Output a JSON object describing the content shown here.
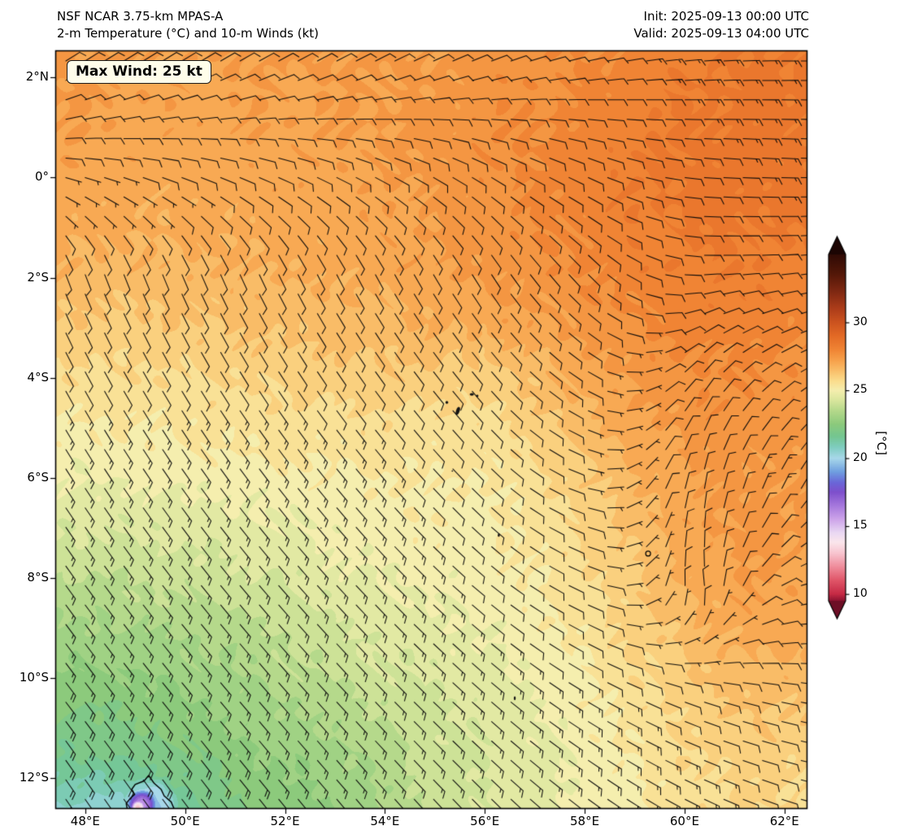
{
  "header": {
    "title_line1": "NSF NCAR 3.75-km MPAS-A",
    "title_line2": "2-m Temperature (°C) and 10-m Winds (kt)",
    "init_line": "Init: 2025-09-13 00:00 UTC",
    "valid_line": "Valid: 2025-09-13 04:00 UTC"
  },
  "annotation": {
    "max_wind_label": "Max Wind: 25 kt"
  },
  "chart_data": {
    "type": "heatmap",
    "title": "2-m Temperature (°C) and 10-m Winds (kt)",
    "model": "NSF NCAR 3.75-km MPAS-A",
    "max_wind_kt": 25,
    "axes": {
      "lon_range": [
        47.4,
        62.46
      ],
      "lat_range": [
        -12.61,
        2.54
      ],
      "x_ticks": [
        {
          "lon": 48,
          "label": "48°E"
        },
        {
          "lon": 50,
          "label": "50°E"
        },
        {
          "lon": 52,
          "label": "52°E"
        },
        {
          "lon": 54,
          "label": "54°E"
        },
        {
          "lon": 56,
          "label": "56°E"
        },
        {
          "lon": 58,
          "label": "58°E"
        },
        {
          "lon": 60,
          "label": "60°E"
        },
        {
          "lon": 62,
          "label": "62°E"
        }
      ],
      "y_ticks": [
        {
          "lat": 2,
          "label": "2°N"
        },
        {
          "lat": 0,
          "label": "0°"
        },
        {
          "lat": -2,
          "label": "2°S"
        },
        {
          "lat": -4,
          "label": "4°S"
        },
        {
          "lat": -6,
          "label": "6°S"
        },
        {
          "lat": -8,
          "label": "8°S"
        },
        {
          "lat": -10,
          "label": "10°S"
        },
        {
          "lat": -12,
          "label": "12°S"
        }
      ]
    },
    "colorbar": {
      "unit_label": "[°C]",
      "vmin": 9.5,
      "vmax": 35,
      "ticks": [
        {
          "value": 30,
          "label": "30"
        },
        {
          "value": 25,
          "label": "25"
        },
        {
          "value": 20,
          "label": "20"
        },
        {
          "value": 15,
          "label": "15"
        },
        {
          "value": 10,
          "label": "10"
        }
      ],
      "extend_over_color": "#1c0503",
      "extend_under_color": "#6d0f26",
      "stops": [
        {
          "v": 9.5,
          "c": "#8c1330"
        },
        {
          "v": 10,
          "c": "#c62a45"
        },
        {
          "v": 11,
          "c": "#e05568"
        },
        {
          "v": 12,
          "c": "#ef8c9b"
        },
        {
          "v": 13,
          "c": "#f8c4cf"
        },
        {
          "v": 13.8,
          "c": "#fbe6ec"
        },
        {
          "v": 14.5,
          "c": "#ead9f3"
        },
        {
          "v": 15.5,
          "c": "#cda4ea"
        },
        {
          "v": 16.5,
          "c": "#a678dd"
        },
        {
          "v": 17.5,
          "c": "#7e50cc"
        },
        {
          "v": 18.2,
          "c": "#6a66d8"
        },
        {
          "v": 19,
          "c": "#6f9fe0"
        },
        {
          "v": 20,
          "c": "#a8d8ea"
        },
        {
          "v": 20.8,
          "c": "#7fcdc0"
        },
        {
          "v": 21.6,
          "c": "#74c691"
        },
        {
          "v": 22.5,
          "c": "#8cca7c"
        },
        {
          "v": 23.5,
          "c": "#b5d98b"
        },
        {
          "v": 24.3,
          "c": "#dbe79e"
        },
        {
          "v": 25,
          "c": "#f5eeae"
        },
        {
          "v": 25.7,
          "c": "#fbdc8c"
        },
        {
          "v": 26.5,
          "c": "#f9bc67"
        },
        {
          "v": 27.2,
          "c": "#f7a14b"
        },
        {
          "v": 28,
          "c": "#f08434"
        },
        {
          "v": 29,
          "c": "#e36a26"
        },
        {
          "v": 30,
          "c": "#cc531f"
        },
        {
          "v": 31,
          "c": "#ad3d1a"
        },
        {
          "v": 32.3,
          "c": "#7e2812"
        },
        {
          "v": 33.5,
          "c": "#551808"
        },
        {
          "v": 35,
          "c": "#2f0b05"
        }
      ]
    },
    "temperature_grid": {
      "lons": [
        47.4,
        48.48,
        49.55,
        50.63,
        51.7,
        52.78,
        53.85,
        54.93,
        56.0,
        57.08,
        58.15,
        59.23,
        60.3,
        61.38,
        62.45
      ],
      "lats": [
        2.54,
        1.46,
        0.38,
        -0.7,
        -1.78,
        -2.86,
        -3.94,
        -5.02,
        -6.1,
        -7.18,
        -8.26,
        -9.34,
        -10.42,
        -11.5,
        -12.61
      ],
      "values_c": [
        [
          27.4,
          27.3,
          27.2,
          27.2,
          27.3,
          27.3,
          27.4,
          27.3,
          27.5,
          27.6,
          27.8,
          28.0,
          28.2,
          28.3,
          28.3
        ],
        [
          27.3,
          27.2,
          27.1,
          27.1,
          27.2,
          27.2,
          27.3,
          27.3,
          27.6,
          27.7,
          27.9,
          28.1,
          28.3,
          28.4,
          28.4
        ],
        [
          27.2,
          27.1,
          27.0,
          27.0,
          27.1,
          27.1,
          27.2,
          27.4,
          27.6,
          27.8,
          28.0,
          28.2,
          28.4,
          28.5,
          28.4
        ],
        [
          27.0,
          26.9,
          26.9,
          26.9,
          27.0,
          27.0,
          27.1,
          27.3,
          27.5,
          27.8,
          28.0,
          28.2,
          28.4,
          28.4,
          28.3
        ],
        [
          26.7,
          26.6,
          26.6,
          26.7,
          26.8,
          26.9,
          27.0,
          27.2,
          27.4,
          27.6,
          27.9,
          28.1,
          28.2,
          28.2,
          28.1
        ],
        [
          26.2,
          26.1,
          26.2,
          26.3,
          26.4,
          26.5,
          26.6,
          26.8,
          27.0,
          27.2,
          27.5,
          27.8,
          28.0,
          28.0,
          27.9
        ],
        [
          25.7,
          25.7,
          25.7,
          25.8,
          25.9,
          26.0,
          26.1,
          26.1,
          25.9,
          26.5,
          27.0,
          27.4,
          27.7,
          27.7,
          27.6
        ],
        [
          25.2,
          25.2,
          25.3,
          25.4,
          25.5,
          25.5,
          25.6,
          25.5,
          25.5,
          26.0,
          26.6,
          27.1,
          27.5,
          27.5,
          27.4
        ],
        [
          24.7,
          24.7,
          24.8,
          24.9,
          25.0,
          25.1,
          25.2,
          25.3,
          25.2,
          25.6,
          26.2,
          26.8,
          27.3,
          27.4,
          27.3
        ],
        [
          24.2,
          24.2,
          24.3,
          24.4,
          24.6,
          24.8,
          25.0,
          25.1,
          25.1,
          25.4,
          25.9,
          26.5,
          27.2,
          27.4,
          27.3
        ],
        [
          23.6,
          23.6,
          23.8,
          23.9,
          24.1,
          24.4,
          24.6,
          24.8,
          24.9,
          25.2,
          25.6,
          26.2,
          26.9,
          27.2,
          27.1
        ],
        [
          23.0,
          23.0,
          23.1,
          23.3,
          23.6,
          24.0,
          24.3,
          24.5,
          24.7,
          25.0,
          25.4,
          25.9,
          26.5,
          26.9,
          26.8
        ],
        [
          22.4,
          22.3,
          22.6,
          22.9,
          23.2,
          23.5,
          23.9,
          24.2,
          24.5,
          24.8,
          25.2,
          25.6,
          26.1,
          26.4,
          26.3
        ],
        [
          21.7,
          21.8,
          22.0,
          22.4,
          22.8,
          23.0,
          23.4,
          24.0,
          24.3,
          24.6,
          25.0,
          25.4,
          25.8,
          26.0,
          25.9
        ],
        [
          20.8,
          20.4,
          21.2,
          21.9,
          22.4,
          22.6,
          23.2,
          23.8,
          24.2,
          24.5,
          24.9,
          25.2,
          25.6,
          25.8,
          25.7
        ]
      ]
    },
    "wind_grid": {
      "lons": [
        47.4,
        49.55,
        51.7,
        53.85,
        56.0,
        58.15,
        60.3,
        62.45
      ],
      "lats": [
        2.54,
        0.38,
        -1.78,
        -3.94,
        -6.1,
        -8.26,
        -10.42,
        -12.61
      ],
      "dir_from_deg": [
        [
          55,
          55,
          58,
          60,
          65,
          75,
          85,
          90
        ],
        [
          95,
          100,
          105,
          110,
          115,
          110,
          95,
          92
        ],
        [
          160,
          158,
          155,
          152,
          148,
          135,
          90,
          85
        ],
        [
          152,
          150,
          147,
          144,
          140,
          118,
          40,
          60
        ],
        [
          147,
          145,
          142,
          139,
          134,
          100,
          10,
          30
        ],
        [
          144,
          142,
          139,
          136,
          129,
          112,
          350,
          80
        ],
        [
          143,
          141,
          139,
          136,
          131,
          120,
          108,
          100
        ],
        [
          146,
          144,
          141,
          139,
          135,
          126,
          116,
          106
        ]
      ],
      "speed_kt": [
        [
          10,
          10,
          10,
          10,
          10,
          12,
          14,
          16
        ],
        [
          8,
          8,
          8,
          8,
          8,
          10,
          12,
          14
        ],
        [
          9,
          9,
          9,
          10,
          10,
          10,
          10,
          12
        ],
        [
          12,
          12,
          12,
          12,
          11,
          8,
          10,
          13
        ],
        [
          15,
          14,
          14,
          13,
          11,
          7,
          12,
          14
        ],
        [
          16,
          15,
          15,
          14,
          12,
          10,
          10,
          12
        ],
        [
          18,
          17,
          16,
          15,
          14,
          13,
          12,
          12
        ],
        [
          24,
          20,
          18,
          16,
          15,
          14,
          13,
          12
        ]
      ]
    },
    "islands": [
      {
        "lon": 55.46,
        "lat": -4.66,
        "rx": 2.2,
        "ry": 5.0,
        "filled": true,
        "rot": 20
      },
      {
        "lon": 55.74,
        "lat": -4.33,
        "rx": 2.6,
        "ry": 1.6,
        "filled": true,
        "rot": 0
      },
      {
        "lon": 55.85,
        "lat": -4.36,
        "rx": 1.4,
        "ry": 1.4,
        "filled": true,
        "rot": 0
      },
      {
        "lon": 55.24,
        "lat": -4.49,
        "rx": 1.8,
        "ry": 1.8,
        "filled": true,
        "rot": 0
      },
      {
        "lon": 55.35,
        "lat": -5.86,
        "rx": 0.9,
        "ry": 0.9,
        "filled": true,
        "rot": 0
      },
      {
        "lon": 56.28,
        "lat": -7.14,
        "rx": 1.2,
        "ry": 2.2,
        "filled": true,
        "rot": 0
      },
      {
        "lon": 59.27,
        "lat": -7.51,
        "rx": 3.0,
        "ry": 3.0,
        "filled": false,
        "rot": 0
      },
      {
        "lon": 56.6,
        "lat": -10.4,
        "rx": 1.2,
        "ry": 2.4,
        "filled": true,
        "rot": 0
      },
      {
        "lon": 52.72,
        "lat": -7.0,
        "rx": 0.8,
        "ry": 0.8,
        "filled": true,
        "rot": 0
      }
    ],
    "coastlines": [
      [
        [
          49.27,
          -11.94
        ],
        [
          49.18,
          -12.05
        ],
        [
          49.0,
          -12.12
        ],
        [
          48.93,
          -12.22
        ],
        [
          48.99,
          -12.32
        ],
        [
          48.9,
          -12.4
        ],
        [
          48.82,
          -12.5
        ],
        [
          48.84,
          -12.61
        ]
      ],
      [
        [
          49.27,
          -11.94
        ],
        [
          49.38,
          -12.1
        ],
        [
          49.52,
          -12.22
        ],
        [
          49.58,
          -12.35
        ],
        [
          49.72,
          -12.47
        ],
        [
          49.78,
          -12.61
        ]
      ]
    ],
    "cold_spots": [
      {
        "lon": 49.33,
        "lat": -12.5,
        "radius_deg": 0.55,
        "min_temp_c": 19.5
      },
      {
        "lon": 49.12,
        "lat": -12.52,
        "radius_deg": 0.3,
        "min_temp_c": 16.0
      },
      {
        "lon": 49.05,
        "lat": -12.58,
        "radius_deg": 0.13,
        "min_temp_c": 13.0
      }
    ]
  }
}
